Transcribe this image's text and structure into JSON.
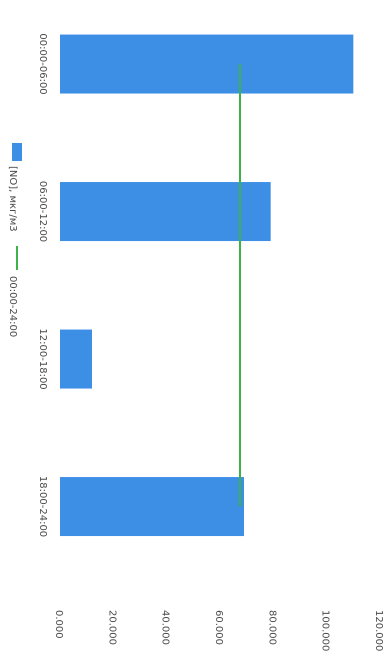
{
  "chart_data": {
    "type": "bar",
    "categories": [
      "00:00-06:00",
      "06:00-12:00",
      "12:00-18:00",
      "18:00-24:00"
    ],
    "series": [
      {
        "name": "[NO], мкг/м3",
        "type": "bar",
        "values": [
          110,
          79,
          12,
          69
        ]
      },
      {
        "name": "00:00-24:00",
        "type": "line",
        "values": [
          67.5,
          67.5,
          67.5,
          67.5
        ]
      }
    ],
    "yaxis_ticks": [
      "0.000",
      "20.000",
      "40.000",
      "60.000",
      "80.000",
      "100.000",
      "120.000"
    ],
    "ylim": [
      0,
      120
    ],
    "grid": false,
    "legend": "left",
    "orientation": "rotated-90",
    "colors": {
      "bar": "#3d8fe6",
      "line": "#3cb34a"
    }
  }
}
